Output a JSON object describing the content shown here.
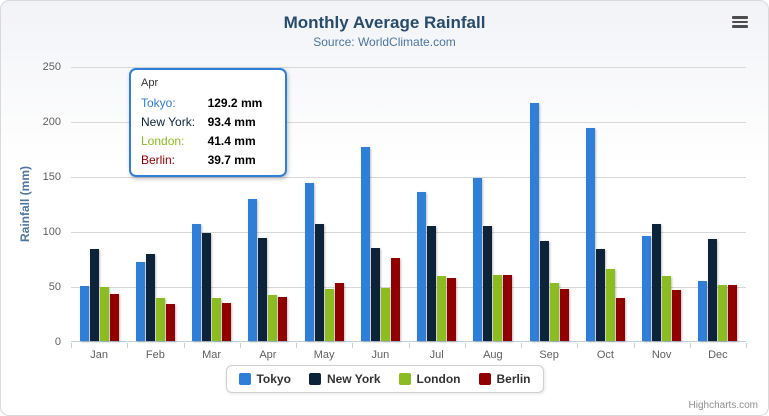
{
  "header": {
    "title": "Monthly Average Rainfall",
    "subtitle": "Source: WorldClimate.com"
  },
  "context_menu_icon": "hamburger-icon",
  "chart_data": {
    "type": "bar",
    "title": "Monthly Average Rainfall",
    "subtitle": "Source: WorldClimate.com",
    "xlabel": "",
    "ylabel": "Rainfall (mm)",
    "ylim": [
      0,
      250
    ],
    "yticks": [
      0,
      50,
      100,
      150,
      200,
      250
    ],
    "grid": true,
    "legend_position": "bottom",
    "categories": [
      "Jan",
      "Feb",
      "Mar",
      "Apr",
      "May",
      "Jun",
      "Jul",
      "Aug",
      "Sep",
      "Oct",
      "Nov",
      "Dec"
    ],
    "series": [
      {
        "name": "Tokyo",
        "color": "#2f7ed8",
        "values": [
          49.9,
          71.5,
          106.4,
          129.2,
          144.0,
          176.0,
          135.6,
          148.5,
          216.4,
          194.1,
          95.6,
          54.4
        ]
      },
      {
        "name": "New York",
        "color": "#0d233a",
        "values": [
          83.6,
          78.8,
          98.5,
          93.4,
          106.0,
          84.5,
          105.0,
          104.3,
          91.2,
          83.5,
          106.6,
          92.3
        ]
      },
      {
        "name": "London",
        "color": "#8bbc21",
        "values": [
          48.9,
          38.8,
          39.3,
          41.4,
          47.0,
          48.3,
          59.0,
          59.6,
          52.4,
          65.2,
          59.3,
          51.2
        ]
      },
      {
        "name": "Berlin",
        "color": "#910000",
        "values": [
          42.4,
          33.2,
          34.5,
          39.7,
          52.6,
          75.5,
          57.4,
          60.4,
          47.6,
          39.1,
          46.8,
          51.1
        ]
      }
    ]
  },
  "tooltip": {
    "category": "Apr",
    "border_color": "#2f7ed8",
    "rows": [
      {
        "name": "Tokyo:",
        "value": "129.2 mm",
        "color": "#2f7ed8"
      },
      {
        "name": "New York:",
        "value": "93.4 mm",
        "color": "#0d233a"
      },
      {
        "name": "London:",
        "value": "41.4 mm",
        "color": "#8bbc21"
      },
      {
        "name": "Berlin:",
        "value": "39.7 mm",
        "color": "#910000"
      }
    ]
  },
  "legend": {
    "items": [
      {
        "label": "Tokyo",
        "color": "#2f7ed8"
      },
      {
        "label": "New York",
        "color": "#0d233a"
      },
      {
        "label": "London",
        "color": "#8bbc21"
      },
      {
        "label": "Berlin",
        "color": "#910000"
      }
    ]
  },
  "credits": "Highcharts.com"
}
